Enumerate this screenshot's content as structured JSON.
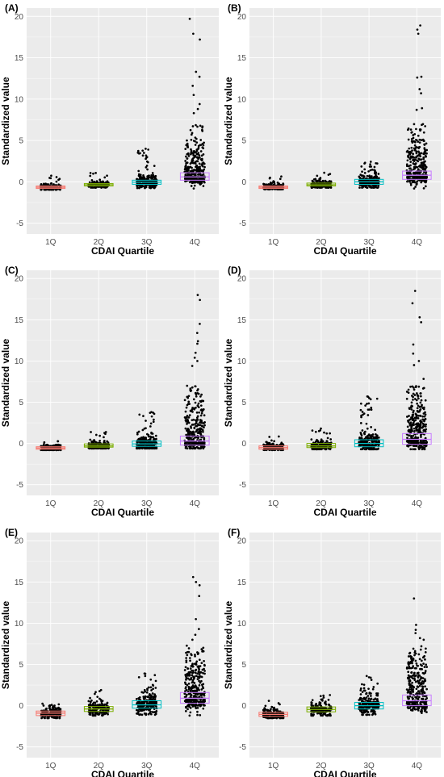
{
  "figure": {
    "chart_data": [
      {
        "type": "scatter",
        "panel_label": "(A)",
        "xlabel": "CDAI Quartile",
        "ylabel": "Standardized value",
        "categories": [
          "1Q",
          "2Q",
          "3Q",
          "4Q"
        ],
        "yticks": [
          "-5",
          "0",
          "5",
          "10",
          "15",
          "20"
        ],
        "ylim": [
          -6.3,
          21
        ],
        "boxes": [
          {
            "category": "1Q",
            "q1": -0.8,
            "median": -0.65,
            "q3": -0.5,
            "min": -0.95,
            "max": 0.8
          },
          {
            "category": "2Q",
            "q1": -0.5,
            "median": -0.35,
            "q3": -0.2,
            "min": -0.7,
            "max": 1.1
          },
          {
            "category": "3Q",
            "q1": -0.3,
            "median": -0.05,
            "q3": 0.2,
            "min": -0.75,
            "max": 4.0
          },
          {
            "category": "4Q",
            "q1": 0.2,
            "median": 0.6,
            "q3": 1.1,
            "min": -0.8,
            "max": 19.7
          }
        ],
        "outliers": {
          "4Q": [
            19.7,
            17.9,
            17.2,
            13.3,
            12.7,
            11.6,
            10.5,
            9.4,
            8.8,
            8.3
          ],
          "3Q": [
            4.0,
            3.5
          ]
        }
      },
      {
        "type": "scatter",
        "panel_label": "(B)",
        "xlabel": "CDAI Quartile",
        "ylabel": "Standardized value",
        "categories": [
          "1Q",
          "2Q",
          "3Q",
          "4Q"
        ],
        "yticks": [
          "-5",
          "0",
          "5",
          "10",
          "15",
          "20"
        ],
        "ylim": [
          -6.3,
          21
        ],
        "boxes": [
          {
            "category": "1Q",
            "q1": -0.8,
            "median": -0.65,
            "q3": -0.5,
            "min": -0.9,
            "max": 0.8
          },
          {
            "category": "2Q",
            "q1": -0.5,
            "median": -0.35,
            "q3": -0.15,
            "min": -0.7,
            "max": 1.2
          },
          {
            "category": "3Q",
            "q1": -0.3,
            "median": 0.0,
            "q3": 0.3,
            "min": -0.7,
            "max": 2.5
          },
          {
            "category": "4Q",
            "q1": 0.3,
            "median": 0.8,
            "q3": 1.3,
            "min": -0.8,
            "max": 18.9
          }
        ],
        "outliers": {
          "4Q": [
            18.9,
            18.4,
            17.9,
            12.7,
            12.6,
            11.2,
            10.7,
            8.9,
            8.7
          ]
        }
      },
      {
        "type": "scatter",
        "panel_label": "(C)",
        "xlabel": "CDAI Quartile",
        "ylabel": "Standardized value",
        "categories": [
          "1Q",
          "2Q",
          "3Q",
          "4Q"
        ],
        "yticks": [
          "-5",
          "0",
          "5",
          "10",
          "15",
          "20"
        ],
        "ylim": [
          -6.3,
          21
        ],
        "boxes": [
          {
            "category": "1Q",
            "q1": -0.7,
            "median": -0.55,
            "q3": -0.4,
            "min": -0.8,
            "max": 0.8
          },
          {
            "category": "2Q",
            "q1": -0.45,
            "median": -0.3,
            "q3": -0.05,
            "min": -0.6,
            "max": 1.9
          },
          {
            "category": "3Q",
            "q1": -0.35,
            "median": -0.05,
            "q3": 0.3,
            "min": -0.6,
            "max": 3.8
          },
          {
            "category": "4Q",
            "q1": -0.2,
            "median": 0.3,
            "q3": 0.9,
            "min": -0.6,
            "max": 18.0
          }
        ],
        "outliers": {
          "4Q": [
            18.0,
            17.4,
            14.5,
            13.4,
            12.4,
            12.1,
            11.0,
            10.4,
            10.0,
            9.4
          ],
          "3Q": [
            3.8
          ]
        }
      },
      {
        "type": "scatter",
        "panel_label": "(D)",
        "xlabel": "CDAI Quartile",
        "ylabel": "Standardized value",
        "categories": [
          "1Q",
          "2Q",
          "3Q",
          "4Q"
        ],
        "yticks": [
          "-5",
          "0",
          "5",
          "10",
          "15",
          "20"
        ],
        "ylim": [
          -6.3,
          21
        ],
        "boxes": [
          {
            "category": "1Q",
            "q1": -0.7,
            "median": -0.5,
            "q3": -0.3,
            "min": -0.8,
            "max": 1.3
          },
          {
            "category": "2Q",
            "q1": -0.5,
            "median": -0.3,
            "q3": 0.0,
            "min": -0.7,
            "max": 2.0
          },
          {
            "category": "3Q",
            "q1": -0.4,
            "median": 0.0,
            "q3": 0.45,
            "min": -0.7,
            "max": 5.7
          },
          {
            "category": "4Q",
            "q1": -0.1,
            "median": 0.5,
            "q3": 1.2,
            "min": -0.7,
            "max": 18.5
          }
        ],
        "outliers": {
          "4Q": [
            18.5,
            17.0,
            15.3,
            14.7,
            12.0,
            10.9,
            10.0,
            9.5
          ],
          "3Q": [
            5.7,
            4.1
          ]
        }
      },
      {
        "type": "scatter",
        "panel_label": "(E)",
        "xlabel": "CDAI Quartile",
        "ylabel": "Standardized value",
        "categories": [
          "1Q",
          "2Q",
          "3Q",
          "4Q"
        ],
        "yticks": [
          "-5",
          "0",
          "5",
          "10",
          "15",
          "20"
        ],
        "ylim": [
          -6.3,
          21
        ],
        "boxes": [
          {
            "category": "1Q",
            "q1": -1.2,
            "median": -0.9,
            "q3": -0.65,
            "min": -1.5,
            "max": 0.4
          },
          {
            "category": "2Q",
            "q1": -0.7,
            "median": -0.4,
            "q3": -0.1,
            "min": -1.2,
            "max": 1.9
          },
          {
            "category": "3Q",
            "q1": -0.3,
            "median": 0.1,
            "q3": 0.6,
            "min": -1.1,
            "max": 3.9
          },
          {
            "category": "4Q",
            "q1": 0.3,
            "median": 0.9,
            "q3": 1.6,
            "min": -1.2,
            "max": 15.6
          }
        ],
        "outliers": {
          "4Q": [
            15.6,
            15.0,
            14.6,
            13.3,
            10.5,
            9.3,
            8.6,
            8.0
          ],
          "3Q": [
            3.9,
            3.6
          ],
          "2Q": [
            1.9
          ]
        }
      },
      {
        "type": "scatter",
        "panel_label": "(F)",
        "xlabel": "CDAI Quartile",
        "ylabel": "Standardized value",
        "categories": [
          "1Q",
          "2Q",
          "3Q",
          "4Q"
        ],
        "yticks": [
          "-5",
          "0",
          "5",
          "10",
          "15",
          "20"
        ],
        "ylim": [
          -6.3,
          21
        ],
        "boxes": [
          {
            "category": "1Q",
            "q1": -1.3,
            "median": -1.05,
            "q3": -0.8,
            "min": -1.5,
            "max": 0.6
          },
          {
            "category": "2Q",
            "q1": -0.75,
            "median": -0.45,
            "q3": -0.15,
            "min": -1.2,
            "max": 1.3
          },
          {
            "category": "3Q",
            "q1": -0.4,
            "median": 0.0,
            "q3": 0.4,
            "min": -1.1,
            "max": 3.6
          },
          {
            "category": "4Q",
            "q1": 0.0,
            "median": 0.6,
            "q3": 1.3,
            "min": -1.2,
            "max": 13.0
          }
        ],
        "outliers": {
          "4Q": [
            13.0,
            9.8,
            9.2,
            8.8,
            8.2,
            7.2
          ],
          "3Q": [
            3.6
          ]
        }
      }
    ],
    "colors": {
      "panel_bg": "#ebebeb",
      "grid": "#ffffff",
      "points": "#000000",
      "boxes": [
        "#f8766d",
        "#7cae00",
        "#00bfc4",
        "#c77cff"
      ]
    }
  }
}
